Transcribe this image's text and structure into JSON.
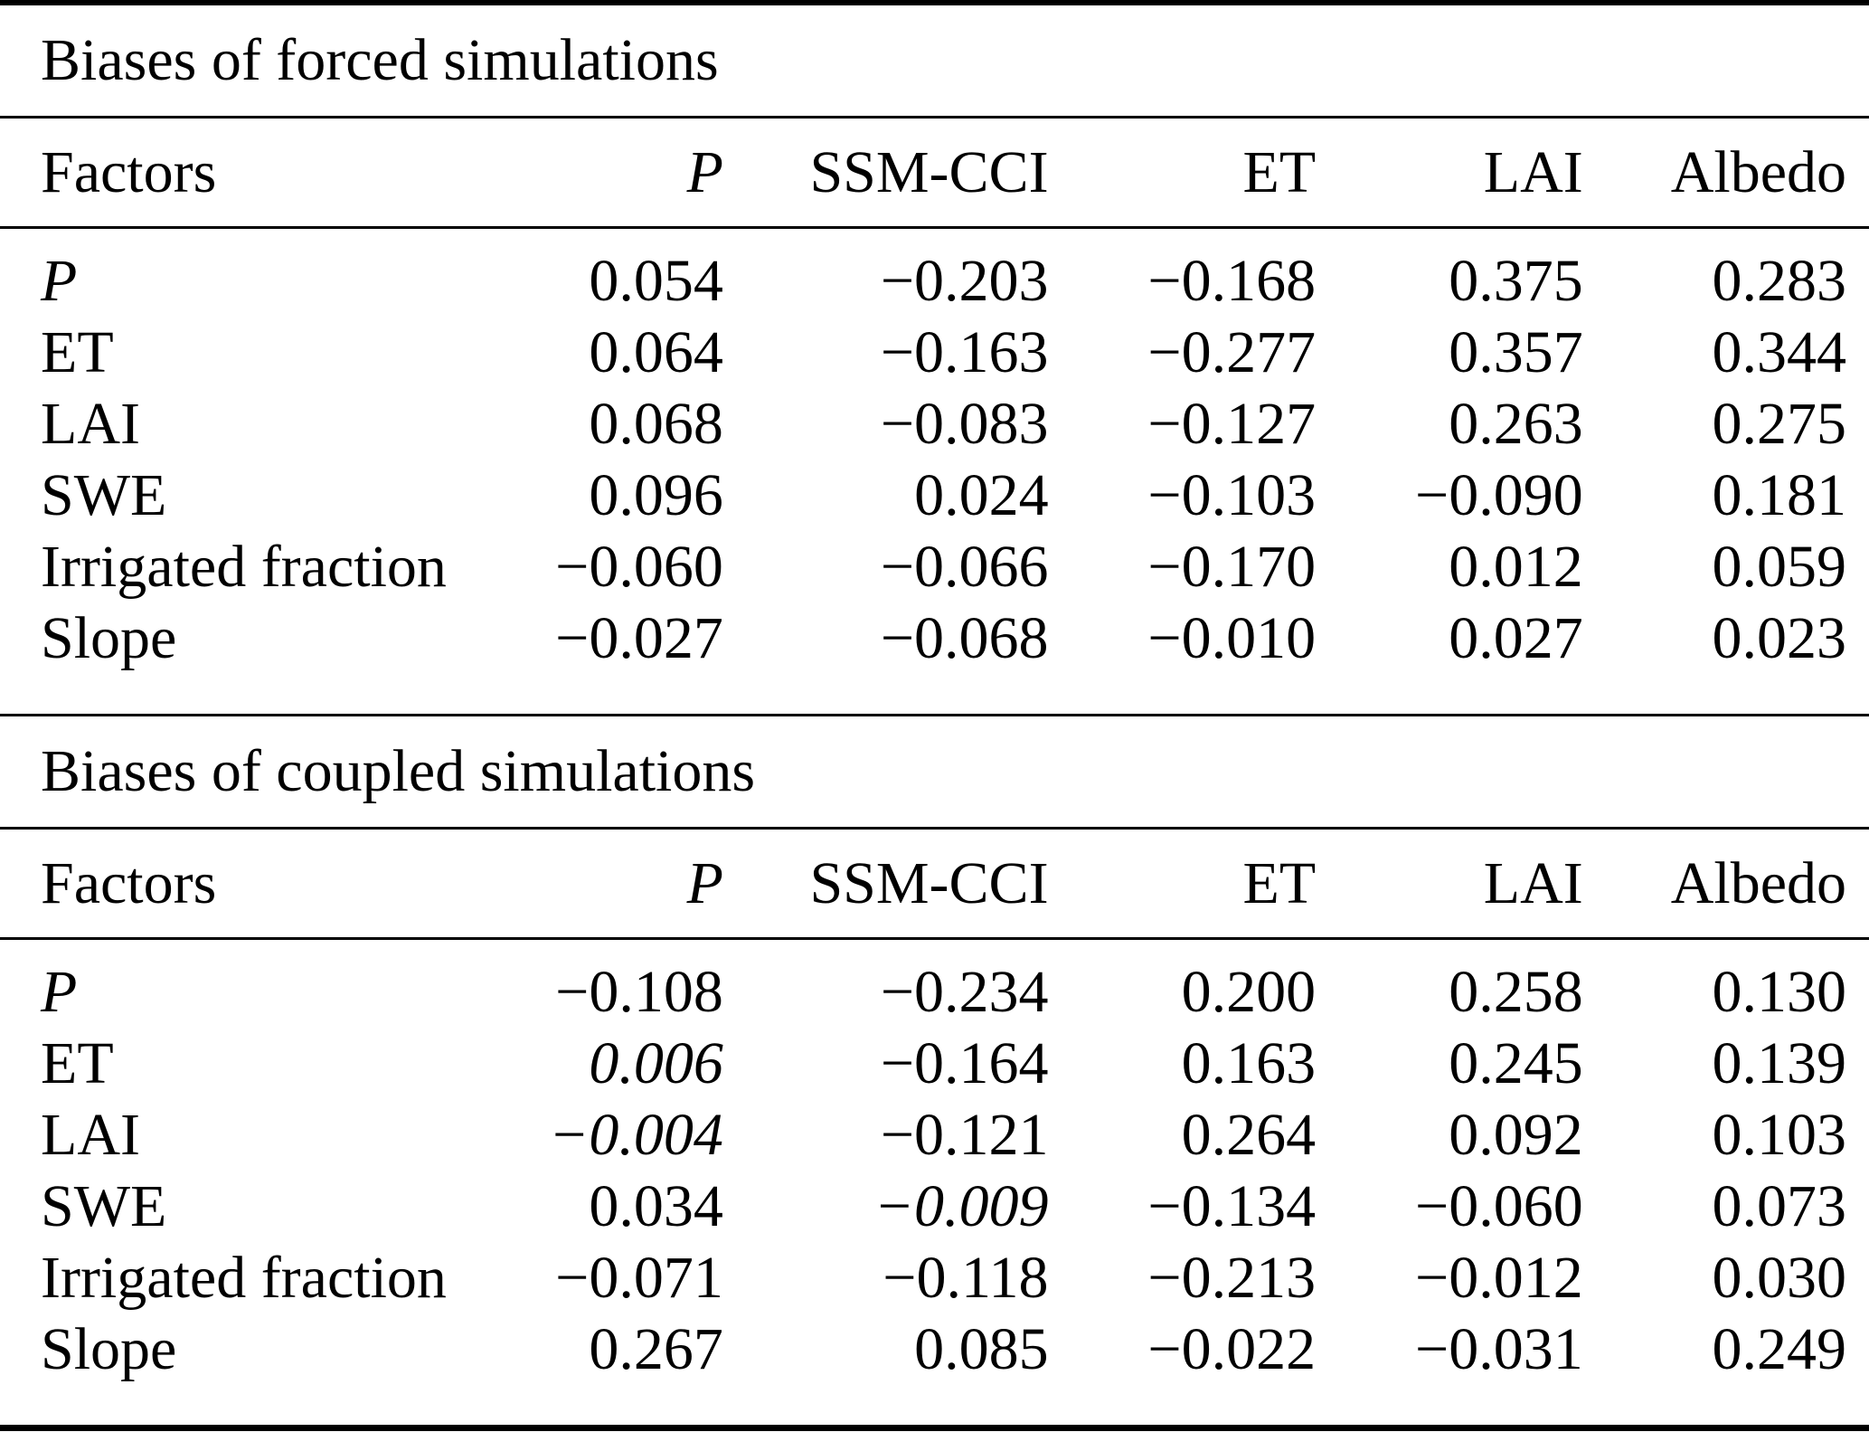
{
  "styles": {
    "background": "#ffffff",
    "text_color": "#000000",
    "rule_color": "#000000"
  },
  "tables": {
    "forced": {
      "title": "Biases of forced simulations",
      "columns": [
        "Factors",
        "P",
        "SSM-CCI",
        "ET",
        "LAI",
        "Albedo"
      ],
      "italic_column_indices": [
        1
      ],
      "rows": [
        {
          "factor": "P",
          "factor_italic": true,
          "italic_value_indices": [],
          "values": [
            "0.054",
            "−0.203",
            "−0.168",
            "0.375",
            "0.283"
          ]
        },
        {
          "factor": "ET",
          "factor_italic": false,
          "italic_value_indices": [],
          "values": [
            "0.064",
            "−0.163",
            "−0.277",
            "0.357",
            "0.344"
          ]
        },
        {
          "factor": "LAI",
          "factor_italic": false,
          "italic_value_indices": [],
          "values": [
            "0.068",
            "−0.083",
            "−0.127",
            "0.263",
            "0.275"
          ]
        },
        {
          "factor": "SWE",
          "factor_italic": false,
          "italic_value_indices": [],
          "values": [
            "0.096",
            "0.024",
            "−0.103",
            "−0.090",
            "0.181"
          ]
        },
        {
          "factor": "Irrigated fraction",
          "factor_italic": false,
          "italic_value_indices": [],
          "values": [
            "−0.060",
            "−0.066",
            "−0.170",
            "0.012",
            "0.059"
          ]
        },
        {
          "factor": "Slope",
          "factor_italic": false,
          "italic_value_indices": [],
          "values": [
            "−0.027",
            "−0.068",
            "−0.010",
            "0.027",
            "0.023"
          ]
        }
      ]
    },
    "coupled": {
      "title": "Biases of coupled simulations",
      "columns": [
        "Factors",
        "P",
        "SSM-CCI",
        "ET",
        "LAI",
        "Albedo"
      ],
      "italic_column_indices": [
        1
      ],
      "rows": [
        {
          "factor": "P",
          "factor_italic": true,
          "italic_value_indices": [],
          "values": [
            "−0.108",
            "−0.234",
            "0.200",
            "0.258",
            "0.130"
          ]
        },
        {
          "factor": "ET",
          "factor_italic": false,
          "italic_value_indices": [
            0
          ],
          "values": [
            "0.006",
            "−0.164",
            "0.163",
            "0.245",
            "0.139"
          ]
        },
        {
          "factor": "LAI",
          "factor_italic": false,
          "italic_value_indices": [
            0
          ],
          "values": [
            "−0.004",
            "−0.121",
            "0.264",
            "0.092",
            "0.103"
          ]
        },
        {
          "factor": "SWE",
          "factor_italic": false,
          "italic_value_indices": [
            1
          ],
          "values": [
            "0.034",
            "−0.009",
            "−0.134",
            "−0.060",
            "0.073"
          ]
        },
        {
          "factor": "Irrigated fraction",
          "factor_italic": false,
          "italic_value_indices": [],
          "values": [
            "−0.071",
            "−0.118",
            "−0.213",
            "−0.012",
            "0.030"
          ]
        },
        {
          "factor": "Slope",
          "factor_italic": false,
          "italic_value_indices": [],
          "values": [
            "0.267",
            "0.085",
            "−0.022",
            "−0.031",
            "0.249"
          ]
        }
      ]
    }
  }
}
